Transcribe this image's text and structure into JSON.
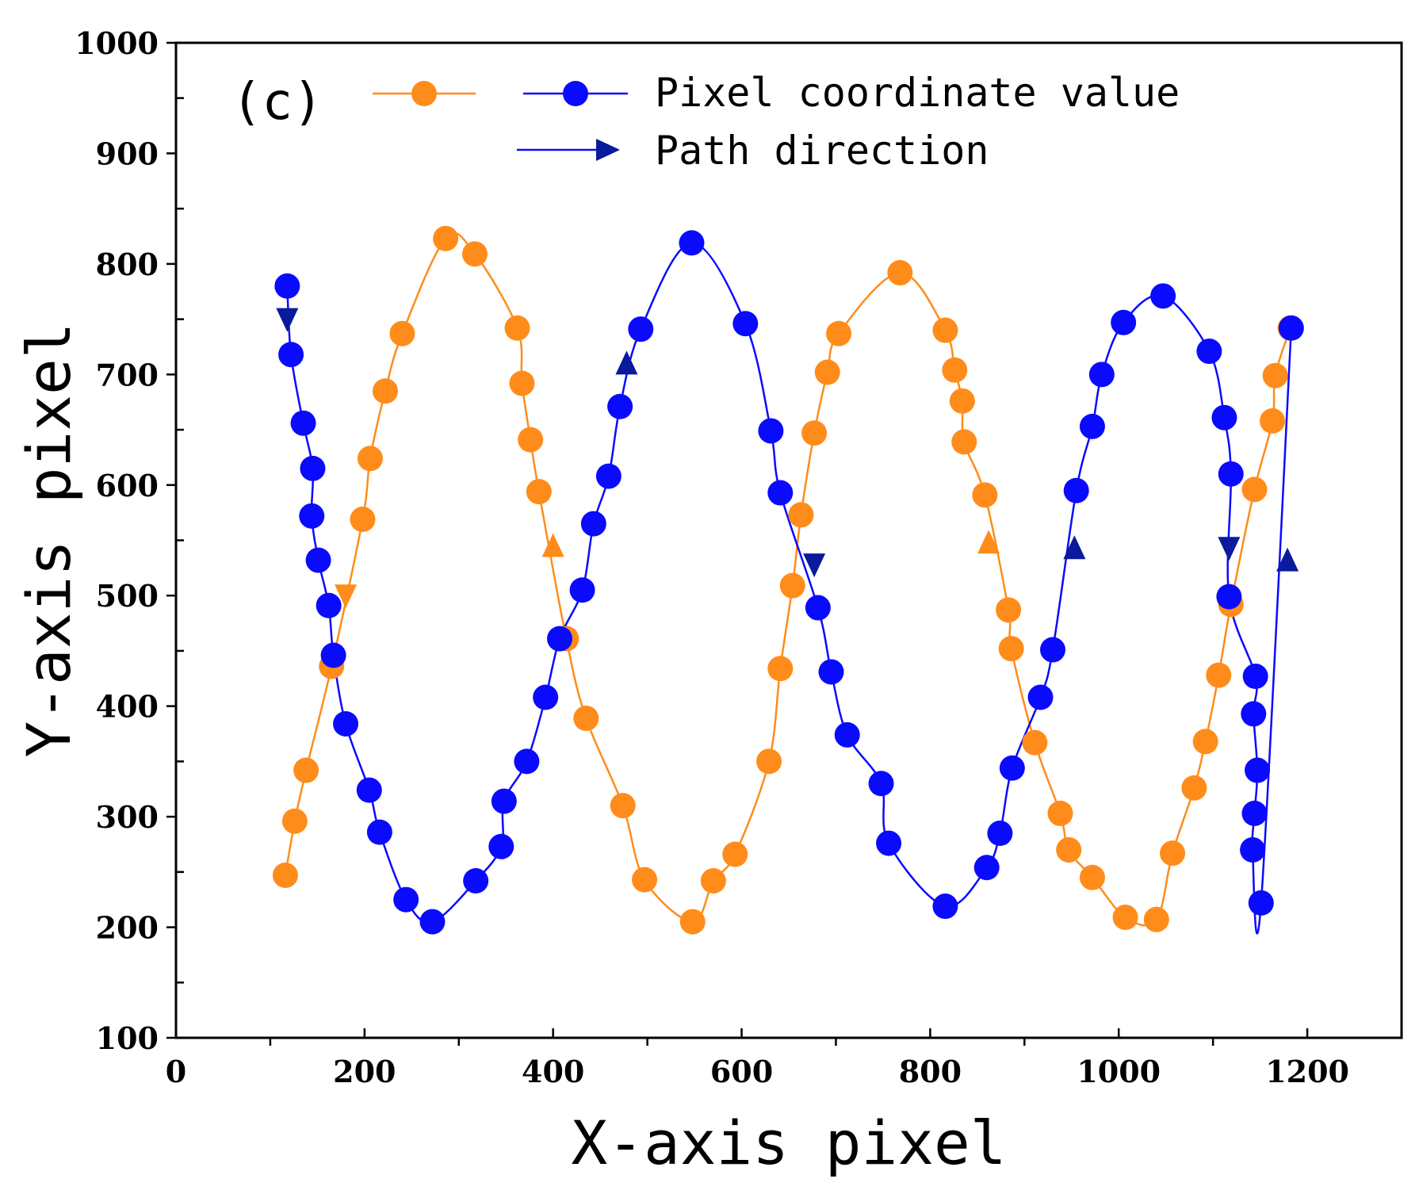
{
  "chart_data": {
    "type": "line",
    "title": "",
    "panel_label": "(c)",
    "xlabel": "X-axis pixel",
    "ylabel": "Y-axis pixel",
    "xlim": [
      0,
      1300
    ],
    "ylim": [
      100,
      1000
    ],
    "x_ticks": [
      0,
      200,
      400,
      600,
      800,
      1000,
      1200
    ],
    "y_ticks": [
      100,
      200,
      300,
      400,
      500,
      600,
      700,
      800,
      900,
      1000
    ],
    "x_tick_labels": [
      "0",
      "200",
      "400",
      "600",
      "800",
      "1000",
      "1200"
    ],
    "y_tick_labels": [
      "100",
      "200",
      "300",
      "400",
      "500",
      "600",
      "700",
      "800",
      "900",
      "1000"
    ],
    "grid": false,
    "legend": {
      "location": "top",
      "entries": [
        {
          "label": "Pixel coordinate value",
          "marker": "circle",
          "series": [
            "orange",
            "blue"
          ]
        },
        {
          "label": "Path direction",
          "marker": "arrow"
        }
      ]
    },
    "series": [
      {
        "name": "orange",
        "color": "#ff8c1a",
        "points": [
          [
            116,
            247
          ],
          [
            126,
            296
          ],
          [
            138,
            342
          ],
          [
            165,
            436
          ],
          [
            198,
            569
          ],
          [
            206,
            624
          ],
          [
            222,
            685
          ],
          [
            240,
            737
          ],
          [
            286,
            823
          ],
          [
            317,
            809
          ],
          [
            362,
            742
          ],
          [
            367,
            692
          ],
          [
            376,
            641
          ],
          [
            385,
            594
          ],
          [
            414,
            461
          ],
          [
            435,
            389
          ],
          [
            474,
            310
          ],
          [
            497,
            243
          ],
          [
            548,
            205
          ],
          [
            570,
            242
          ],
          [
            593,
            266
          ],
          [
            629,
            350
          ],
          [
            641,
            434
          ],
          [
            654,
            509
          ],
          [
            663,
            573
          ],
          [
            677,
            647
          ],
          [
            691,
            702
          ],
          [
            703,
            737
          ],
          [
            768,
            792
          ],
          [
            816,
            740
          ],
          [
            826,
            704
          ],
          [
            834,
            676
          ],
          [
            836,
            639
          ],
          [
            858,
            591
          ],
          [
            883,
            487
          ],
          [
            886,
            452
          ],
          [
            911,
            367
          ],
          [
            938,
            303
          ],
          [
            947,
            270
          ],
          [
            972,
            245
          ],
          [
            1007,
            209
          ],
          [
            1040,
            207
          ],
          [
            1057,
            267
          ],
          [
            1080,
            326
          ],
          [
            1092,
            368
          ],
          [
            1106,
            428
          ],
          [
            1119,
            492
          ],
          [
            1144,
            596
          ],
          [
            1163,
            658
          ],
          [
            1166,
            699
          ],
          [
            1182,
            742
          ]
        ]
      },
      {
        "name": "blue",
        "color": "#0a0aff",
        "points": [
          [
            118,
            780
          ],
          [
            122,
            718
          ],
          [
            135,
            656
          ],
          [
            145,
            615
          ],
          [
            144,
            572
          ],
          [
            151,
            532
          ],
          [
            162,
            491
          ],
          [
            167,
            446
          ],
          [
            180,
            384
          ],
          [
            205,
            324
          ],
          [
            216,
            286
          ],
          [
            244,
            225
          ],
          [
            272,
            205
          ],
          [
            318,
            242
          ],
          [
            345,
            273
          ],
          [
            348,
            314
          ],
          [
            372,
            350
          ],
          [
            392,
            408
          ],
          [
            407,
            461
          ],
          [
            431,
            505
          ],
          [
            443,
            565
          ],
          [
            459,
            608
          ],
          [
            471,
            671
          ],
          [
            493,
            741
          ],
          [
            547,
            819
          ],
          [
            604,
            746
          ],
          [
            631,
            649
          ],
          [
            641,
            593
          ],
          [
            681,
            489
          ],
          [
            695,
            431
          ],
          [
            712,
            374
          ],
          [
            748,
            330
          ],
          [
            756,
            276
          ],
          [
            816,
            219
          ],
          [
            860,
            254
          ],
          [
            874,
            285
          ],
          [
            887,
            344
          ],
          [
            917,
            408
          ],
          [
            930,
            451
          ],
          [
            955,
            595
          ],
          [
            972,
            653
          ],
          [
            982,
            700
          ],
          [
            1005,
            747
          ],
          [
            1047,
            771
          ],
          [
            1096,
            721
          ],
          [
            1112,
            661
          ],
          [
            1119,
            610
          ],
          [
            1117,
            499
          ],
          [
            1145,
            427
          ],
          [
            1143,
            393
          ],
          [
            1147,
            342
          ],
          [
            1144,
            303
          ],
          [
            1142,
            270
          ],
          [
            1151,
            222
          ],
          [
            1183,
            742
          ]
        ]
      }
    ],
    "direction_arrows": [
      {
        "series": "blue",
        "x": 118,
        "y": 750,
        "direction": "down"
      },
      {
        "series": "orange",
        "x": 180,
        "y": 500,
        "direction": "down"
      },
      {
        "series": "orange",
        "x": 400,
        "y": 545,
        "direction": "up"
      },
      {
        "series": "blue",
        "x": 478,
        "y": 710,
        "direction": "up"
      },
      {
        "series": "blue",
        "x": 677,
        "y": 528,
        "direction": "down"
      },
      {
        "series": "orange",
        "x": 862,
        "y": 548,
        "direction": "up"
      },
      {
        "series": "blue",
        "x": 953,
        "y": 543,
        "direction": "up"
      },
      {
        "series": "blue",
        "x": 1117,
        "y": 543,
        "direction": "down"
      },
      {
        "series": "blue",
        "x": 1179,
        "y": 532,
        "direction": "up"
      }
    ]
  }
}
